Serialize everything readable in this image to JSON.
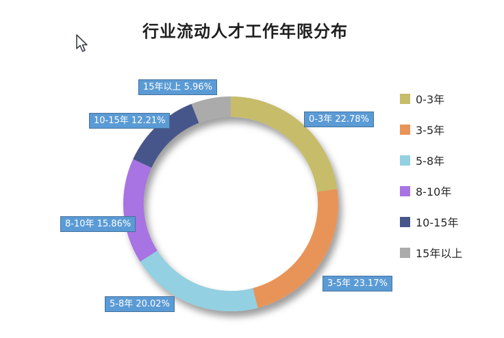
{
  "title": "行业流动人才工作年限分布",
  "chart_data": {
    "type": "pie",
    "subtype": "donut",
    "title": "行业流动人才工作年限分布",
    "categories": [
      "0-3年",
      "3-5年",
      "5-8年",
      "8-10年",
      "10-15年",
      "15年以上"
    ],
    "values": [
      22.78,
      23.17,
      20.02,
      15.86,
      12.21,
      5.96
    ],
    "unit": "%",
    "colors": [
      "#C6BC6A",
      "#E89458",
      "#92D0E2",
      "#A873E2",
      "#47568A",
      "#ACABAC"
    ],
    "start_angle_deg": 0,
    "direction": "clockwise",
    "inner_radius_ratio": 0.81,
    "point_labels": [
      "0-3年 22.78%",
      "3-5年 23.17%",
      "5-8年 20.02%",
      "8-10年 15.86%",
      "10-15年 12.21%",
      "15年以上 5.96%"
    ],
    "label_bg": "#5B9BD5",
    "label_border": "#41719C",
    "legend_position": "right",
    "legend_labels": [
      "0-3年",
      "3-5年",
      "5-8年",
      "8-10年",
      "10-15年",
      "15年以上"
    ]
  }
}
